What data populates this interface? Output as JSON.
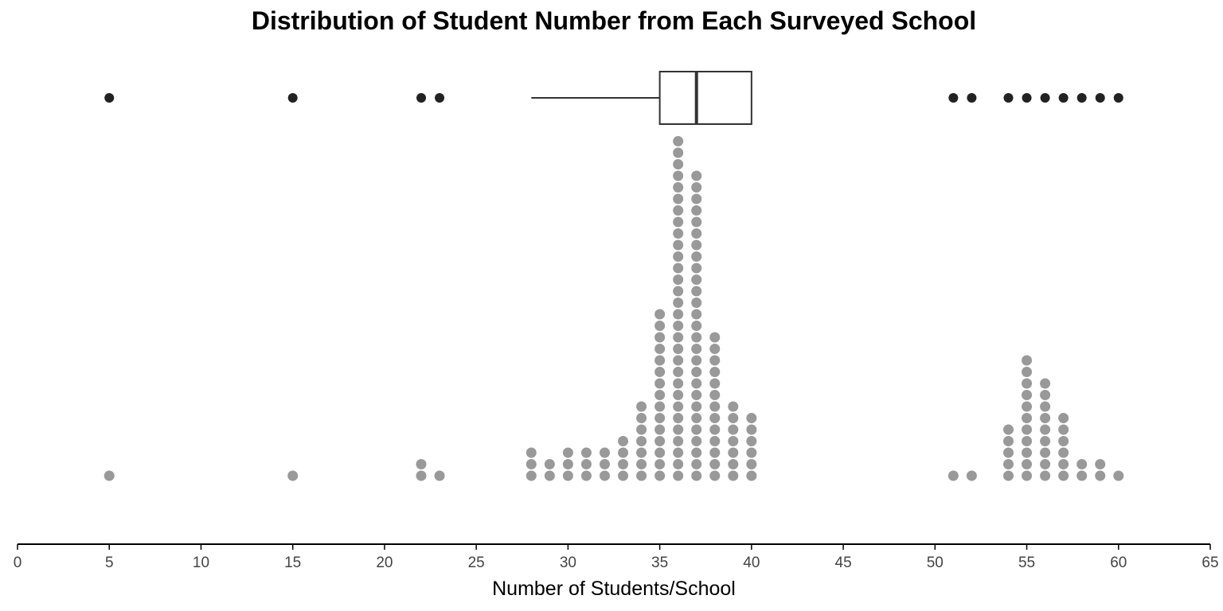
{
  "chart_data": {
    "type": "dotplot_with_boxplot",
    "title": "Distribution of Student Number from Each Surveyed School",
    "xlabel": "Number of Students/School",
    "ylabel": "",
    "xlim": [
      0,
      65
    ],
    "xticks": [
      0,
      5,
      10,
      15,
      20,
      25,
      30,
      35,
      40,
      45,
      50,
      55,
      60,
      65
    ],
    "grid": false,
    "dot_counts": [
      {
        "x": 5,
        "count": 1
      },
      {
        "x": 15,
        "count": 1
      },
      {
        "x": 22,
        "count": 2
      },
      {
        "x": 23,
        "count": 1
      },
      {
        "x": 28,
        "count": 3
      },
      {
        "x": 29,
        "count": 2
      },
      {
        "x": 30,
        "count": 3
      },
      {
        "x": 31,
        "count": 3
      },
      {
        "x": 32,
        "count": 3
      },
      {
        "x": 33,
        "count": 4
      },
      {
        "x": 34,
        "count": 7
      },
      {
        "x": 35,
        "count": 15
      },
      {
        "x": 36,
        "count": 30
      },
      {
        "x": 37,
        "count": 27
      },
      {
        "x": 38,
        "count": 13
      },
      {
        "x": 39,
        "count": 7
      },
      {
        "x": 40,
        "count": 6
      },
      {
        "x": 51,
        "count": 1
      },
      {
        "x": 52,
        "count": 1
      },
      {
        "x": 54,
        "count": 5
      },
      {
        "x": 55,
        "count": 11
      },
      {
        "x": 56,
        "count": 9
      },
      {
        "x": 57,
        "count": 6
      },
      {
        "x": 58,
        "count": 2
      },
      {
        "x": 59,
        "count": 2
      },
      {
        "x": 60,
        "count": 1
      }
    ],
    "boxplot": {
      "whisker_low": 28,
      "q1": 35,
      "median": 37,
      "q3": 40,
      "whisker_high": 40,
      "outliers": [
        5,
        15,
        22,
        23,
        51,
        52,
        54,
        55,
        56,
        57,
        58,
        59,
        60
      ]
    },
    "colors": {
      "dots": "#999999",
      "box": "#333333",
      "outliers": "#222222",
      "axis": "#000000"
    }
  }
}
